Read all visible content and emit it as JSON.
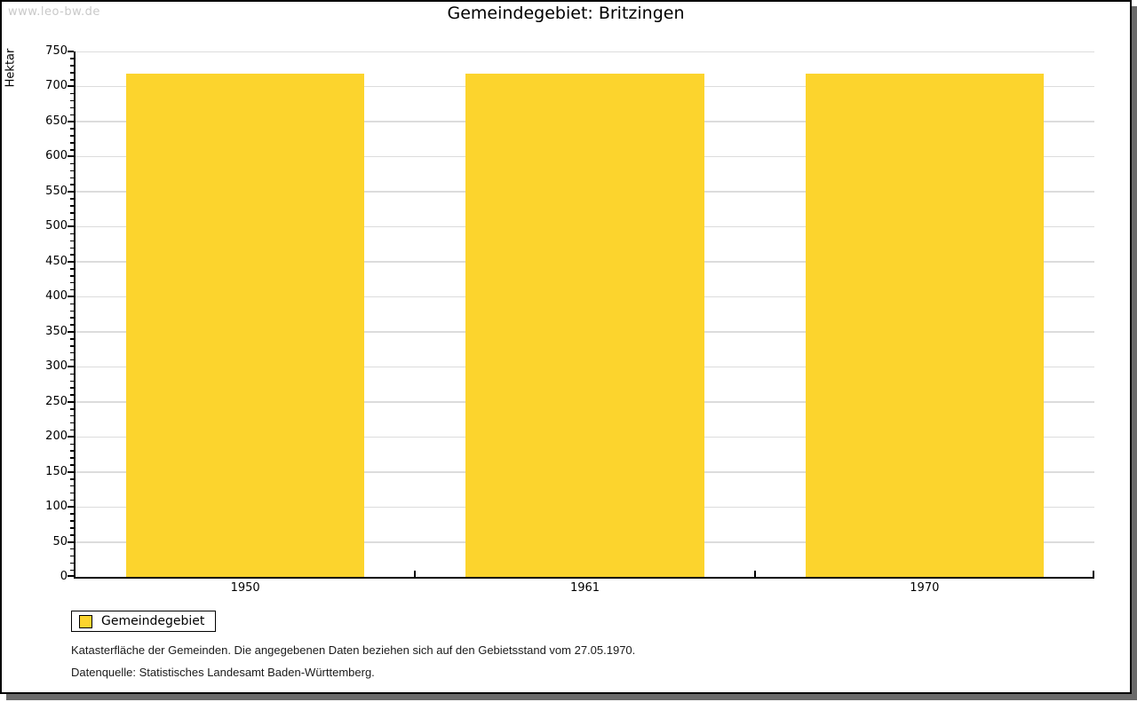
{
  "watermark": "www.leo-bw.de",
  "header": {
    "title": "Gemeindegebiet: Britzingen"
  },
  "chart_data": {
    "type": "bar",
    "title": "Gemeindegebiet: Britzingen",
    "categories": [
      "1950",
      "1961",
      "1970"
    ],
    "series": [
      {
        "name": "Gemeindegebiet",
        "values": [
          718,
          718,
          718
        ]
      }
    ],
    "xlabel": "",
    "ylabel": "Hektar",
    "ylim": [
      0,
      750
    ],
    "y_major_tick_step": 50,
    "y_minor_tick_step": 10,
    "grid": "horizontal-major-only",
    "legend_position": "bottom-left",
    "bar_color": "#fcd42d",
    "bar_width_fraction_of_category": 0.702
  },
  "legend": {
    "items": [
      {
        "label": "Gemeindegebiet",
        "color": "#fcd42d"
      }
    ]
  },
  "notes": {
    "line1": "Katasterfläche der Gemeinden. Die angegebenen Daten beziehen sich auf den Gebietsstand vom 27.05.1970.",
    "line2": "Datenquelle: Statistisches Landesamt Baden-Württemberg."
  },
  "colors": {
    "bar": "#fcd42d",
    "grid": "#dcdcdc",
    "axis": "#000000",
    "text": "#000000",
    "watermark": "#c9c9c9",
    "frame_border": "#000000",
    "frame_shadow": "#6a6a6a",
    "background": "#ffffff"
  }
}
